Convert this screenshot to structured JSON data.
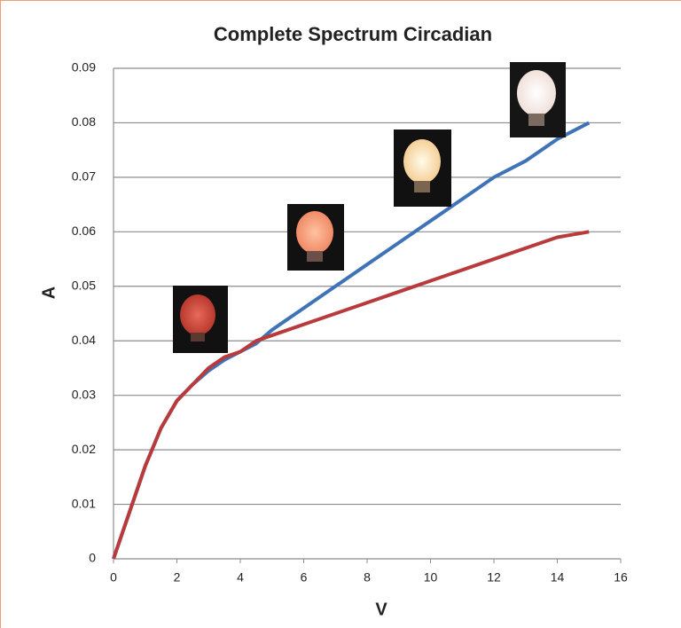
{
  "chart_data": {
    "type": "line",
    "title": "Complete Spectrum Circadian",
    "x_label": "V",
    "y_label": "A",
    "x": [
      0,
      1,
      1.5,
      2,
      2.5,
      3,
      3.5,
      4,
      4.5,
      5,
      6,
      7,
      8,
      9,
      10,
      11,
      12,
      13,
      14,
      15
    ],
    "series": [
      {
        "color": "#3f73b8",
        "values": [
          0,
          0.017,
          0.024,
          0.029,
          0.032,
          0.0345,
          0.0365,
          0.038,
          0.0395,
          0.042,
          0.046,
          0.05,
          0.054,
          0.058,
          0.062,
          0.066,
          0.07,
          0.073,
          0.077,
          0.08
        ]
      },
      {
        "color": "#b83a3a",
        "values": [
          0,
          0.017,
          0.024,
          0.029,
          0.032,
          0.035,
          0.037,
          0.038,
          0.04,
          0.041,
          0.043,
          0.045,
          0.047,
          0.049,
          0.051,
          0.053,
          0.055,
          0.057,
          0.059,
          0.06
        ]
      }
    ],
    "xlim": [
      0,
      16
    ],
    "xticks": [
      0,
      2,
      4,
      6,
      8,
      10,
      12,
      14,
      16
    ],
    "ylim": [
      0,
      0.09
    ],
    "yticks": [
      0,
      0.01,
      0.02,
      0.03,
      0.04,
      0.05,
      0.06,
      0.07,
      0.08,
      0.09
    ],
    "grid": true
  }
}
